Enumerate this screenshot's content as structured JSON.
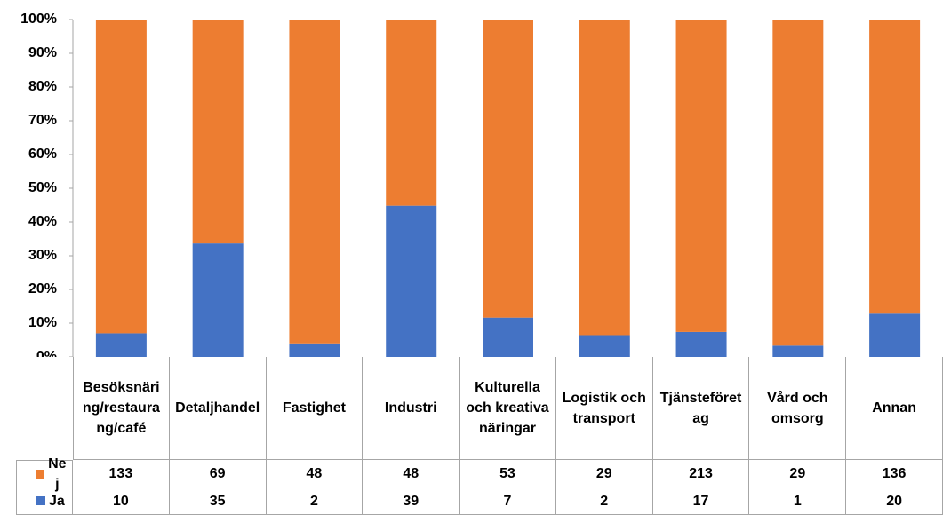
{
  "chart_data": {
    "type": "bar",
    "stack": "percent",
    "categories": [
      "Besöksnäring/restaurang/café",
      "Detaljhandel",
      "Fastighet",
      "Industri",
      "Kulturella och kreativa näringar",
      "Logistik och transport",
      "Tjänsteföretag",
      "Vård och omsorg",
      "Annan"
    ],
    "series": [
      {
        "name": "Nej",
        "color": "#ed7d31",
        "values": [
          133,
          69,
          48,
          48,
          53,
          29,
          213,
          29,
          136
        ]
      },
      {
        "name": "Ja",
        "color": "#4472c4",
        "values": [
          10,
          35,
          2,
          39,
          7,
          2,
          17,
          1,
          20
        ]
      }
    ],
    "ylim": [
      0,
      100
    ],
    "yticks": [
      {
        "value": 0,
        "label": "0%"
      },
      {
        "value": 10,
        "label": "10%"
      },
      {
        "value": 20,
        "label": "20%"
      },
      {
        "value": 30,
        "label": "30%"
      },
      {
        "value": 40,
        "label": "40%"
      },
      {
        "value": 50,
        "label": "50%"
      },
      {
        "value": 60,
        "label": "60%"
      },
      {
        "value": 70,
        "label": "70%"
      },
      {
        "value": 80,
        "label": "80%"
      },
      {
        "value": 90,
        "label": "90%"
      },
      {
        "value": 100,
        "label": "100%"
      }
    ],
    "grid": false
  }
}
